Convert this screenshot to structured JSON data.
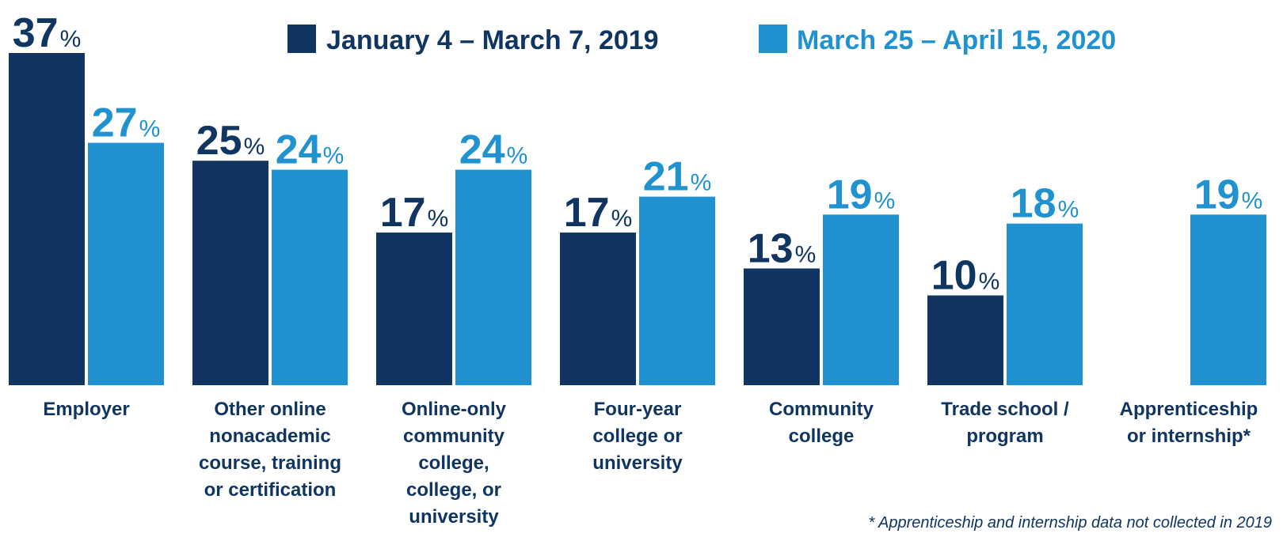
{
  "chart_data": {
    "type": "bar",
    "categories": [
      "Employer",
      "Other online nonacademic course, training or certification",
      "Online-only community college, college, or university",
      "Four-year college or university",
      "Community college",
      "Trade school / program",
      "Apprenticeship or internship*"
    ],
    "category_lines": [
      [
        "Employer"
      ],
      [
        "Other online",
        "nonacademic",
        "course, training",
        "or certification"
      ],
      [
        "Online-only",
        "community",
        "college,",
        "college, or",
        "university"
      ],
      [
        "Four-year",
        "college or",
        "university"
      ],
      [
        "Community",
        "college"
      ],
      [
        "Trade school /",
        "program"
      ],
      [
        "Apprenticeship",
        "or internship*"
      ]
    ],
    "series": [
      {
        "name": "January 4 – March 7, 2019",
        "color": "#0f3560",
        "values": [
          37,
          25,
          17,
          17,
          13,
          10,
          null
        ]
      },
      {
        "name": "March 25 – April 15, 2020",
        "color": "#2192d0",
        "values": [
          27,
          24,
          24,
          21,
          19,
          18,
          19
        ]
      }
    ],
    "value_suffix": "%",
    "ylim": [
      0,
      37
    ],
    "grid": false,
    "legend_position": "top",
    "footnote": "* Apprenticeship and internship data not collected in 2019"
  }
}
